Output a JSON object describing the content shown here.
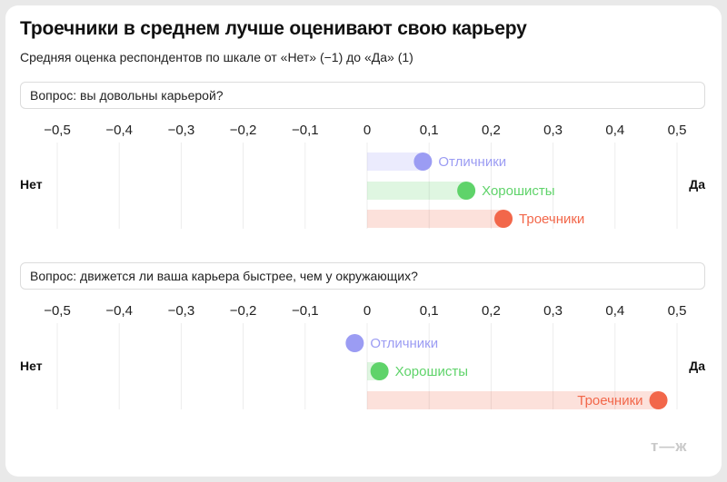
{
  "title": "Троечники в среднем лучше оценивают свою карьеру",
  "subtitle": "Средняя оценка респондентов по шкале от «Нет» (−1) до «Да» (1)",
  "logo": "т—ж",
  "chart_data": [
    {
      "type": "dot",
      "title": "Вопрос: вы довольны карьерой?",
      "left_label": "Нет",
      "right_label": "Да",
      "xlim": [
        -0.5,
        0.5
      ],
      "ticks": [
        "−0,5",
        "−0,4",
        "−0,3",
        "−0,2",
        "−0,1",
        "0",
        "0,1",
        "0,2",
        "0,3",
        "0,4",
        "0,5"
      ],
      "grid": true,
      "series": [
        {
          "name": "Отличники",
          "value": 0.09,
          "color": "#9b9cf3"
        },
        {
          "name": "Хорошисты",
          "value": 0.16,
          "color": "#5fd36a"
        },
        {
          "name": "Троечники",
          "value": 0.22,
          "color": "#f2674a"
        }
      ]
    },
    {
      "type": "dot",
      "title": "Вопрос: движется ли ваша карьера быстрее, чем у окружающих?",
      "left_label": "Нет",
      "right_label": "Да",
      "xlim": [
        -0.5,
        0.5
      ],
      "ticks": [
        "−0,5",
        "−0,4",
        "−0,3",
        "−0,2",
        "−0,1",
        "0",
        "0,1",
        "0,2",
        "0,3",
        "0,4",
        "0,5"
      ],
      "grid": true,
      "series": [
        {
          "name": "Отличники",
          "value": -0.02,
          "color": "#9b9cf3"
        },
        {
          "name": "Хорошисты",
          "value": 0.02,
          "color": "#5fd36a"
        },
        {
          "name": "Троечники",
          "value": 0.47,
          "color": "#f2674a"
        }
      ]
    }
  ]
}
